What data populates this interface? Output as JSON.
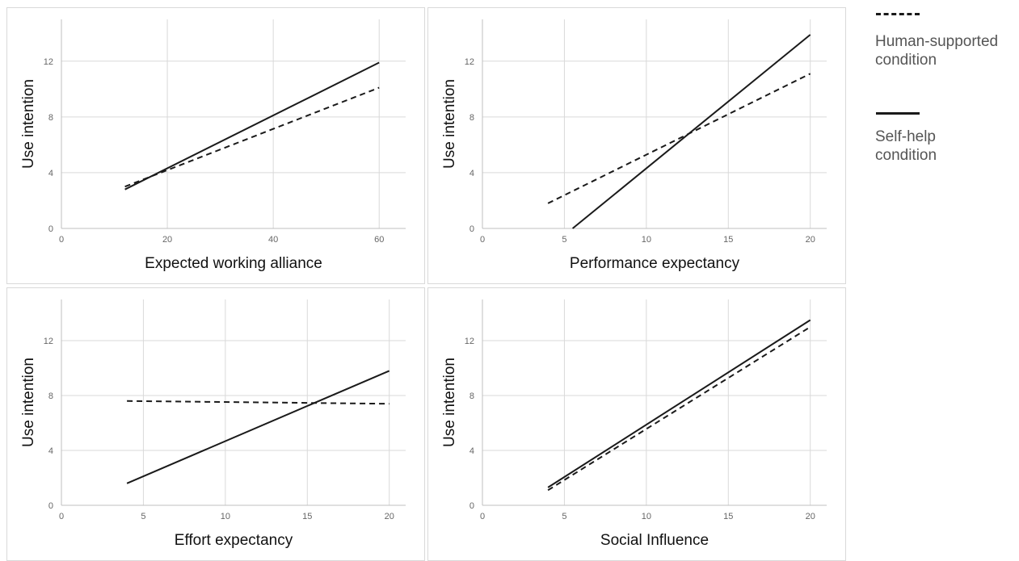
{
  "chart_data": [
    {
      "type": "line",
      "xlabel": "Expected working alliance",
      "ylabel": "Use intention",
      "xlim": [
        0,
        65
      ],
      "ylim": [
        0,
        15
      ],
      "xticks": [
        0,
        20,
        40,
        60
      ],
      "yticks": [
        0,
        4,
        8,
        12
      ],
      "grid": true,
      "series": [
        {
          "legend_ref": 0,
          "x": [
            12,
            60
          ],
          "y": [
            3.0,
            10.1
          ]
        },
        {
          "legend_ref": 1,
          "x": [
            12,
            60
          ],
          "y": [
            2.8,
            11.9
          ]
        }
      ]
    },
    {
      "type": "line",
      "xlabel": "Performance expectancy",
      "ylabel": "Use intention",
      "xlim": [
        0,
        21
      ],
      "ylim": [
        0,
        15
      ],
      "xticks": [
        0,
        5,
        10,
        15,
        20
      ],
      "yticks": [
        0,
        4,
        8,
        12
      ],
      "grid": true,
      "series": [
        {
          "legend_ref": 0,
          "x": [
            4,
            20
          ],
          "y": [
            1.8,
            11.1
          ]
        },
        {
          "legend_ref": 1,
          "x": [
            5.5,
            20
          ],
          "y": [
            0,
            13.9
          ]
        }
      ]
    },
    {
      "type": "line",
      "xlabel": "Effort expectancy",
      "ylabel": "Use intention",
      "xlim": [
        0,
        21
      ],
      "ylim": [
        0,
        15
      ],
      "xticks": [
        0,
        5,
        10,
        15,
        20
      ],
      "yticks": [
        0,
        4,
        8,
        12
      ],
      "grid": true,
      "series": [
        {
          "legend_ref": 0,
          "x": [
            4,
            20
          ],
          "y": [
            7.6,
            7.4
          ]
        },
        {
          "legend_ref": 1,
          "x": [
            4,
            20
          ],
          "y": [
            1.6,
            9.8
          ]
        }
      ]
    },
    {
      "type": "line",
      "xlabel": "Social Influence",
      "ylabel": "Use intention",
      "xlim": [
        0,
        21
      ],
      "ylim": [
        0,
        15
      ],
      "xticks": [
        0,
        5,
        10,
        15,
        20
      ],
      "yticks": [
        0,
        4,
        8,
        12
      ],
      "grid": true,
      "series": [
        {
          "legend_ref": 0,
          "x": [
            4,
            20
          ],
          "y": [
            1.1,
            13.0
          ]
        },
        {
          "legend_ref": 1,
          "x": [
            4,
            20
          ],
          "y": [
            1.3,
            13.5
          ]
        }
      ]
    }
  ],
  "legend": {
    "placement": "right",
    "items": [
      {
        "label_lines": [
          "Human-supported",
          "condition"
        ],
        "style": "dashed"
      },
      {
        "label_lines": [
          "Self-help",
          "condition"
        ],
        "style": "solid"
      }
    ]
  },
  "colors": {
    "line": "#1a1a1a",
    "grid": "#d9d9d9",
    "axis": "#bfbfbf",
    "tick_text": "#666666",
    "label_text": "#111111"
  }
}
